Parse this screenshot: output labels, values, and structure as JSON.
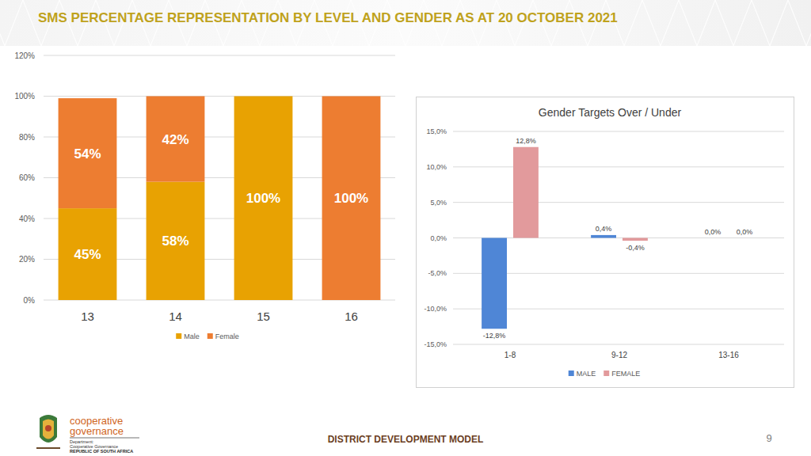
{
  "page": {
    "title": "SMS PERCENTAGE REPRESENTATION BY LEVEL AND GENDER AS AT 20 OCTOBER 2021",
    "footer": "DISTRICT DEVELOPMENT MODEL",
    "page_number": 9,
    "logo": [
      "cooperative",
      "governance",
      "Department:",
      "Cooperative Governance",
      "REPUBLIC OF SOUTH AFRICA"
    ]
  },
  "chart_data": [
    {
      "type": "bar",
      "stacked": true,
      "categories": [
        "13",
        "14",
        "15",
        "16"
      ],
      "series": [
        {
          "name": "Male",
          "color": "#E8A202",
          "values": [
            45,
            58,
            100,
            0
          ],
          "value_labels": [
            "45%",
            "58%",
            "100%",
            null
          ]
        },
        {
          "name": "Female",
          "color": "#ED7D31",
          "values": [
            54,
            42,
            0,
            100
          ],
          "value_labels": [
            "54%",
            "42%",
            null,
            "100%"
          ]
        }
      ],
      "ylim": [
        0,
        120
      ],
      "yticks": [
        {
          "value": 0,
          "label": "0%"
        },
        {
          "value": 20,
          "label": "20%"
        },
        {
          "value": 40,
          "label": "40%"
        },
        {
          "value": 60,
          "label": "60%"
        },
        {
          "value": 80,
          "label": "80%"
        },
        {
          "value": 100,
          "label": "100%"
        },
        {
          "value": 120,
          "label": "120%"
        }
      ],
      "grid": true,
      "legend": "bottom",
      "data_labels": true
    },
    {
      "type": "bar",
      "title": "Gender Targets Over / Under",
      "categories": [
        "1-8",
        "9-12",
        "13-16"
      ],
      "series": [
        {
          "name": "MALE",
          "color": "#4F86D6",
          "values": [
            -12.8,
            0.4,
            0.0
          ],
          "value_labels": [
            "-12,8%",
            "0,4%",
            "0,0%"
          ]
        },
        {
          "name": "FEMALE",
          "color": "#E29A9C",
          "values": [
            12.8,
            -0.4,
            0.0
          ],
          "value_labels": [
            "12,8%",
            "-0,4%",
            "0,0%"
          ]
        }
      ],
      "ylim": [
        -15,
        15
      ],
      "yticks": [
        {
          "value": -15,
          "label": "-15,0%"
        },
        {
          "value": -10,
          "label": "-10,0%"
        },
        {
          "value": -5,
          "label": "-5,0%"
        },
        {
          "value": 0,
          "label": "0,0%"
        },
        {
          "value": 5,
          "label": "5,0%"
        },
        {
          "value": 10,
          "label": "10,0%"
        },
        {
          "value": 15,
          "label": "15,0%"
        }
      ],
      "grid": true,
      "legend": "bottom",
      "data_labels": true
    }
  ]
}
